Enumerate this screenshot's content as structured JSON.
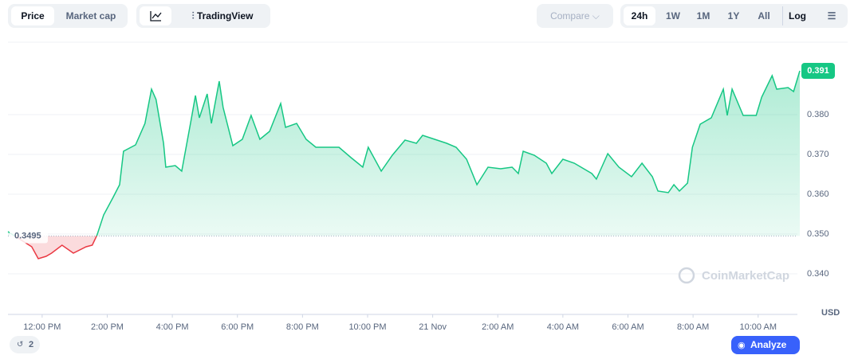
{
  "ui": {
    "tabs": [
      "Price",
      "Market cap"
    ],
    "tool": "TradingView",
    "compare": "Compare",
    "ranges": [
      "24h",
      "1W",
      "1M",
      "1Y",
      "All"
    ],
    "log": "Log",
    "currency": "USD",
    "watermark": "CoinMarketCap",
    "analyze": "Analyze",
    "history_count": "2"
  },
  "chart_data": {
    "type": "line",
    "color_up": "#16c784",
    "color_down": "#ea3943",
    "grid": true,
    "baseline": 0.3495,
    "x": [
      10.95,
      11.68,
      11.88,
      12.12,
      12.29,
      12.61,
      12.96,
      13.35,
      13.54,
      13.69,
      13.89,
      14.18,
      14.38,
      14.5,
      14.87,
      15.16,
      15.36,
      15.5,
      15.73,
      15.8,
      16.09,
      16.29,
      16.58,
      16.71,
      16.83,
      17.07,
      17.2,
      17.44,
      17.56,
      17.86,
      18.15,
      18.42,
      18.69,
      18.99,
      19.33,
      19.48,
      19.82,
      20.11,
      20.41,
      20.75,
      21.12,
      21.49,
      21.85,
      22.02,
      22.42,
      22.76,
      23.15,
      23.5,
      23.69,
      24.06,
      24.43,
      24.72,
      25.04,
      25.36,
      25.7,
      26.09,
      26.44,
      26.63,
      26.78,
      27.12,
      27.49,
      27.66,
      28.0,
      28.35,
      28.89,
      29.03,
      29.38,
      29.72,
      30.11,
      30.43,
      30.75,
      30.92,
      31.24,
      31.41,
      31.58,
      31.83,
      31.98,
      32.22,
      32.56,
      32.93,
      33.05,
      33.2,
      33.54,
      33.94,
      34.11,
      34.43,
      34.57,
      34.92,
      35.09,
      35.28
    ],
    "values": [
      0.3506,
      0.3468,
      0.3438,
      0.3444,
      0.3452,
      0.3472,
      0.3452,
      0.3468,
      0.3472,
      0.3498,
      0.3548,
      0.3592,
      0.3624,
      0.3708,
      0.3724,
      0.3778,
      0.3864,
      0.3838,
      0.3728,
      0.3668,
      0.3672,
      0.3658,
      0.3788,
      0.3848,
      0.3792,
      0.3852,
      0.3778,
      0.3884,
      0.3818,
      0.3722,
      0.3738,
      0.3798,
      0.3738,
      0.3758,
      0.3828,
      0.3768,
      0.3778,
      0.3738,
      0.3718,
      0.3718,
      0.3718,
      0.3692,
      0.3668,
      0.3718,
      0.3658,
      0.3698,
      0.3736,
      0.3728,
      0.3748,
      0.3738,
      0.3728,
      0.3718,
      0.3688,
      0.3624,
      0.3668,
      0.3664,
      0.3668,
      0.3652,
      0.3708,
      0.3698,
      0.3678,
      0.3652,
      0.3688,
      0.3678,
      0.3652,
      0.3638,
      0.3702,
      0.3668,
      0.3644,
      0.3678,
      0.3644,
      0.3608,
      0.3604,
      0.3624,
      0.3608,
      0.3628,
      0.3718,
      0.3776,
      0.3792,
      0.3864,
      0.3798,
      0.3864,
      0.3798,
      0.3798,
      0.3844,
      0.3898,
      0.3864,
      0.3868,
      0.3858,
      0.391
    ],
    "xlim": [
      10.95,
      35.28
    ],
    "xticks": [
      {
        "value": 12,
        "label": "12:00 PM"
      },
      {
        "value": 14,
        "label": "2:00 PM"
      },
      {
        "value": 16,
        "label": "4:00 PM"
      },
      {
        "value": 18,
        "label": "6:00 PM"
      },
      {
        "value": 20,
        "label": "8:00 PM"
      },
      {
        "value": 22,
        "label": "10:00 PM"
      },
      {
        "value": 24,
        "label": "21 Nov"
      },
      {
        "value": 26,
        "label": "2:00 AM"
      },
      {
        "value": 28,
        "label": "4:00 AM"
      },
      {
        "value": 30,
        "label": "6:00 AM"
      },
      {
        "value": 32,
        "label": "8:00 AM"
      },
      {
        "value": 34,
        "label": "10:00 AM"
      }
    ],
    "ylim": [
      0.33,
      0.399
    ],
    "yticks": [
      {
        "value": 0.34,
        "label": "0.340"
      },
      {
        "value": 0.35,
        "label": "0.350"
      },
      {
        "value": 0.36,
        "label": "0.360"
      },
      {
        "value": 0.37,
        "label": "0.370"
      },
      {
        "value": 0.38,
        "label": "0.380"
      }
    ]
  }
}
